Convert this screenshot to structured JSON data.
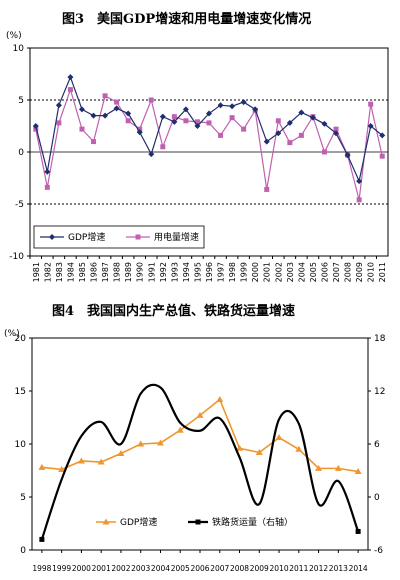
{
  "figures": [
    {
      "title": "图3　美国GDP增速和用电量增速变化情况",
      "unit_label": "(%)"
    },
    {
      "title": "图4　我国国内生产总值、铁路货运量增速",
      "unit_label": "(%)"
    }
  ],
  "chart_data": [
    {
      "type": "line",
      "title": "图3　美国GDP增速和用电量增速变化情况",
      "ylabel": "(%)",
      "xlabel": "",
      "ylim": [
        -10,
        10
      ],
      "yticks": [
        -10,
        -5,
        0,
        5,
        10
      ],
      "reference_lines": [
        5,
        -5
      ],
      "reference_line_style": "dotted",
      "grid": false,
      "legend_position": "bottom-left",
      "categories": [
        "1981",
        "1982",
        "1983",
        "1984",
        "1985",
        "1986",
        "1987",
        "1988",
        "1989",
        "1990",
        "1991",
        "1992",
        "1993",
        "1994",
        "1995",
        "1996",
        "1997",
        "1998",
        "1999",
        "2000",
        "2001",
        "2002",
        "2003",
        "2004",
        "2005",
        "2006",
        "2007",
        "2008",
        "2009",
        "2010",
        "2011"
      ],
      "series": [
        {
          "name": "GDP增速",
          "color": "#1f2f6e",
          "marker": "diamond",
          "values": [
            2.5,
            -1.9,
            4.5,
            7.2,
            4.1,
            3.5,
            3.5,
            4.2,
            3.7,
            1.9,
            -0.2,
            3.4,
            2.9,
            4.1,
            2.5,
            3.7,
            4.5,
            4.4,
            4.8,
            4.1,
            1.0,
            1.8,
            2.8,
            3.8,
            3.3,
            2.7,
            1.8,
            -0.3,
            -2.8,
            2.5,
            1.6
          ]
        },
        {
          "name": "用电量增速",
          "color": "#c060b0",
          "marker": "square",
          "values": [
            2.2,
            -3.4,
            2.8,
            6.0,
            2.2,
            1.0,
            5.4,
            4.8,
            3.0,
            2.2,
            5.0,
            0.5,
            3.4,
            3.0,
            2.9,
            2.8,
            1.6,
            3.3,
            2.2,
            4.0,
            -3.6,
            3.0,
            0.9,
            1.6,
            3.4,
            0.0,
            2.2,
            -0.3,
            -4.6,
            4.6,
            -0.4
          ]
        }
      ]
    },
    {
      "type": "line",
      "title": "图4　我国国内生产总值、铁路货运量增速",
      "ylabel": "(%)",
      "xlabel": "",
      "ylim": [
        0,
        20
      ],
      "yticks": [
        0,
        5,
        10,
        15,
        20
      ],
      "y2lim": [
        -6,
        18
      ],
      "y2ticks": [
        -6,
        0,
        6,
        12,
        18
      ],
      "grid": false,
      "legend_position": "bottom-center",
      "categories": [
        "1998",
        "1999",
        "2000",
        "2001",
        "2002",
        "2003",
        "2004",
        "2005",
        "2006",
        "2007",
        "2008",
        "2009",
        "2010",
        "2011",
        "2012",
        "2013",
        "2014"
      ],
      "series": [
        {
          "name": "GDP增速",
          "color": "#f0962e",
          "marker": "triangle",
          "axis": "left",
          "values": [
            7.8,
            7.6,
            8.4,
            8.3,
            9.1,
            10.0,
            10.1,
            11.3,
            12.7,
            14.2,
            9.6,
            9.2,
            10.6,
            9.5,
            7.7,
            7.7,
            7.4
          ]
        },
        {
          "name": "铁路货运量（右轴）",
          "color": "#000000",
          "marker": "square",
          "axis": "right",
          "smooth": true,
          "values": [
            -4.8,
            2.0,
            6.9,
            8.5,
            6.0,
            11.7,
            12.4,
            8.4,
            7.5,
            8.9,
            4.5,
            -0.8,
            8.8,
            8.3,
            -0.8,
            1.8,
            -3.9
          ]
        }
      ]
    }
  ]
}
